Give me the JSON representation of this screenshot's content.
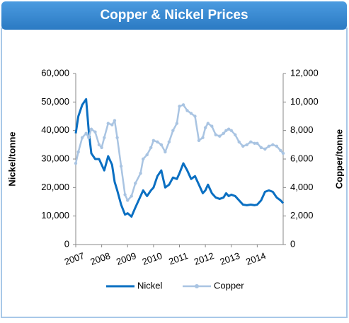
{
  "header": {
    "title": "Copper & Nickel Prices"
  },
  "chart_data": {
    "type": "line",
    "x": [
      2007.0,
      2007.1,
      2007.25,
      2007.4,
      2007.5,
      2007.6,
      2007.75,
      2007.9,
      2008.0,
      2008.1,
      2008.25,
      2008.4,
      2008.5,
      2008.6,
      2008.75,
      2008.9,
      2009.0,
      2009.15,
      2009.3,
      2009.5,
      2009.6,
      2009.75,
      2009.9,
      2010.0,
      2010.15,
      2010.3,
      2010.45,
      2010.6,
      2010.75,
      2010.9,
      2011.0,
      2011.15,
      2011.3,
      2011.45,
      2011.6,
      2011.75,
      2011.9,
      2012.0,
      2012.1,
      2012.25,
      2012.4,
      2012.55,
      2012.7,
      2012.8,
      2012.9,
      2013.0,
      2013.15,
      2013.3,
      2013.45,
      2013.6,
      2013.75,
      2013.9,
      2014.0,
      2014.15,
      2014.3,
      2014.45,
      2014.6,
      2014.75,
      2014.9,
      2015.0
    ],
    "series": [
      {
        "name": "Nickel",
        "color": "#0a6fc2",
        "axis": "y",
        "values": [
          39000,
          45000,
          49000,
          51000,
          40000,
          32000,
          30000,
          30000,
          28000,
          26000,
          31000,
          28000,
          22000,
          19000,
          14000,
          10500,
          11000,
          9800,
          13000,
          17000,
          19000,
          17000,
          19000,
          20000,
          24000,
          26000,
          20000,
          21000,
          23500,
          23000,
          25000,
          28500,
          26000,
          23000,
          24000,
          21000,
          18000,
          19000,
          21000,
          18000,
          16500,
          16000,
          16500,
          18000,
          17000,
          17500,
          17000,
          15500,
          14000,
          13800,
          14000,
          13800,
          14000,
          15500,
          18500,
          19000,
          18500,
          16500,
          15500,
          14500
        ]
      },
      {
        "name": "Copper",
        "color": "#a9c4e2",
        "axis": "y2",
        "values": [
          5700,
          6500,
          7500,
          7800,
          7500,
          8100,
          7900,
          7000,
          6800,
          7500,
          8500,
          8400,
          8700,
          7500,
          5500,
          3500,
          3100,
          3400,
          4300,
          5000,
          6000,
          6300,
          6800,
          7300,
          7200,
          7000,
          6500,
          7200,
          8000,
          8500,
          9700,
          9800,
          9400,
          9200,
          9000,
          7300,
          7500,
          8200,
          8500,
          8300,
          7700,
          7600,
          7800,
          8000,
          8100,
          8000,
          7700,
          7200,
          6900,
          7000,
          7200,
          7100,
          7100,
          6800,
          6700,
          6900,
          7000,
          6900,
          6600,
          6400
        ]
      }
    ],
    "xlim": [
      2007,
      2015
    ],
    "xticks": [
      2007,
      2008,
      2009,
      2010,
      2011,
      2012,
      2013,
      2014
    ],
    "ylim": [
      0,
      60000
    ],
    "yticks": [
      0,
      {
        "value": 10000,
        "label": "10,000"
      },
      {
        "value": 20000,
        "label": "20,000"
      },
      {
        "value": 30000,
        "label": "30,000"
      },
      {
        "value": 40000,
        "label": "40,000"
      },
      {
        "value": 50000,
        "label": "50,000"
      },
      {
        "value": 60000,
        "label": "60,000"
      }
    ],
    "y2lim": [
      0,
      12000
    ],
    "y2ticks": [
      0,
      {
        "value": 2000,
        "label": "2,000"
      },
      {
        "value": 4000,
        "label": "4,000"
      },
      {
        "value": 6000,
        "label": "6,000"
      },
      {
        "value": 8000,
        "label": "8,000"
      },
      {
        "value": 10000,
        "label": "10,000"
      },
      {
        "value": 12000,
        "label": "12,000"
      }
    ],
    "ylabel": "Nickel/tonne",
    "y2label": "Copper/tonne",
    "grid": false
  }
}
